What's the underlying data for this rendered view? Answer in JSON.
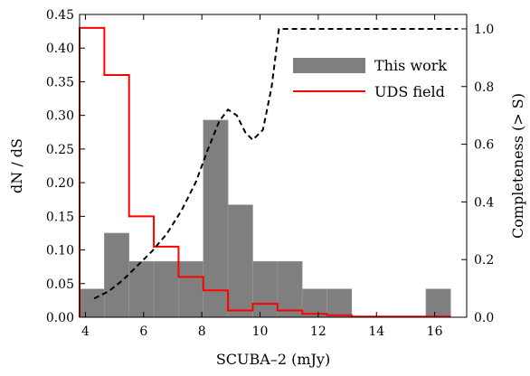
{
  "chart_data": {
    "type": "bar",
    "xlabel": "SCUBA–2 (mJy)",
    "ylabel": "dN / dS",
    "y2label": "Completeness (> S)",
    "xlim": [
      3.8,
      17.1
    ],
    "ylim": [
      0,
      0.45
    ],
    "y2lim": [
      0,
      1.05
    ],
    "xticks": [
      4,
      6,
      8,
      10,
      12,
      14,
      16
    ],
    "yticks": [
      0.0,
      0.05,
      0.1,
      0.15,
      0.2,
      0.25,
      0.3,
      0.35,
      0.4,
      0.45
    ],
    "y2ticks": [
      0.0,
      0.2,
      0.4,
      0.6,
      0.8,
      1.0
    ],
    "xtick_labels": [
      "4",
      "6",
      "8",
      "10",
      "12",
      "14",
      "16"
    ],
    "ytick_labels": [
      "0.00",
      "0.05",
      "0.10",
      "0.15",
      "0.20",
      "0.25",
      "0.30",
      "0.35",
      "0.40",
      "0.45"
    ],
    "y2tick_labels": [
      "0.0",
      "0.2",
      "0.4",
      "0.6",
      "0.8",
      "1.0"
    ],
    "legend_position": "top-right",
    "series": [
      {
        "name": "This work",
        "kind": "bar-histogram",
        "color": "#7f7f7f",
        "bin_edges": [
          3.8,
          4.65,
          5.5,
          6.35,
          7.2,
          8.05,
          8.9,
          9.75,
          10.6,
          11.45,
          12.3,
          13.15,
          14.0,
          14.85,
          15.7,
          16.55
        ],
        "values": [
          0.042,
          0.125,
          0.083,
          0.083,
          0.083,
          0.293,
          0.167,
          0.083,
          0.083,
          0.042,
          0.042,
          0.0,
          0.0,
          0.0,
          0.042
        ]
      },
      {
        "name": "UDS field",
        "kind": "step-histogram",
        "color": "#ff0000",
        "bin_edges": [
          3.8,
          4.65,
          5.5,
          6.35,
          7.2,
          8.05,
          8.9,
          9.75,
          10.6,
          11.45,
          12.3,
          13.15,
          14.0,
          14.85,
          15.7,
          16.55
        ],
        "values": [
          0.43,
          0.36,
          0.15,
          0.105,
          0.06,
          0.04,
          0.01,
          0.02,
          0.01,
          0.005,
          0.003,
          0.001,
          0.001,
          0.001,
          0.001
        ]
      },
      {
        "name": "",
        "kind": "line-dashed",
        "axis": "right",
        "color": "#000000",
        "x": [
          4.3,
          4.8,
          5.3,
          5.8,
          6.3,
          6.8,
          7.3,
          7.8,
          8.2,
          8.6,
          8.9,
          9.2,
          9.5,
          9.75,
          10.1,
          10.4,
          10.65,
          11.0,
          12.0,
          14.0,
          16.0,
          16.8
        ],
        "y": [
          0.065,
          0.09,
          0.13,
          0.18,
          0.23,
          0.29,
          0.37,
          0.47,
          0.58,
          0.68,
          0.72,
          0.7,
          0.64,
          0.615,
          0.65,
          0.8,
          1.0,
          1.0,
          1.0,
          1.0,
          1.0,
          1.0
        ]
      }
    ]
  }
}
